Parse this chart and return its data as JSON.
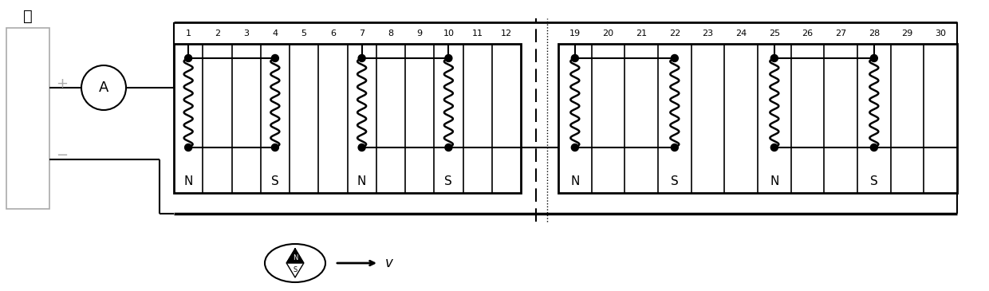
{
  "fig_width": 12.4,
  "fig_height": 3.65,
  "dpi": 100,
  "bg_color": "#ffffff",
  "line_color": "#000000",
  "gray_color": "#aaaaaa",
  "slots_group1_labels": [
    1,
    2,
    3,
    4,
    5,
    6,
    7,
    8,
    9,
    10,
    11,
    12
  ],
  "slots_group2_labels": [
    19,
    20,
    21,
    22,
    23,
    24,
    25,
    26,
    27,
    28,
    29,
    30
  ],
  "coil_slots_group1": [
    1,
    4,
    7,
    10
  ],
  "coil_slots_group2": [
    19,
    22,
    25,
    28
  ],
  "ns_labels_group1": {
    "1": "N",
    "4": "S",
    "7": "N",
    "10": "S"
  },
  "ns_labels_group2": {
    "19": "N",
    "22": "S",
    "25": "N",
    "28": "S"
  },
  "title": "低",
  "battery_plus": "+",
  "battery_minus": "−",
  "ammeter_label": "A",
  "compass_N": "N",
  "compass_S": "S",
  "velocity_label": "v",
  "slot_number_fontsize": 8,
  "ns_fontsize": 11,
  "ammeter_fontsize": 13,
  "title_fontsize": 14
}
